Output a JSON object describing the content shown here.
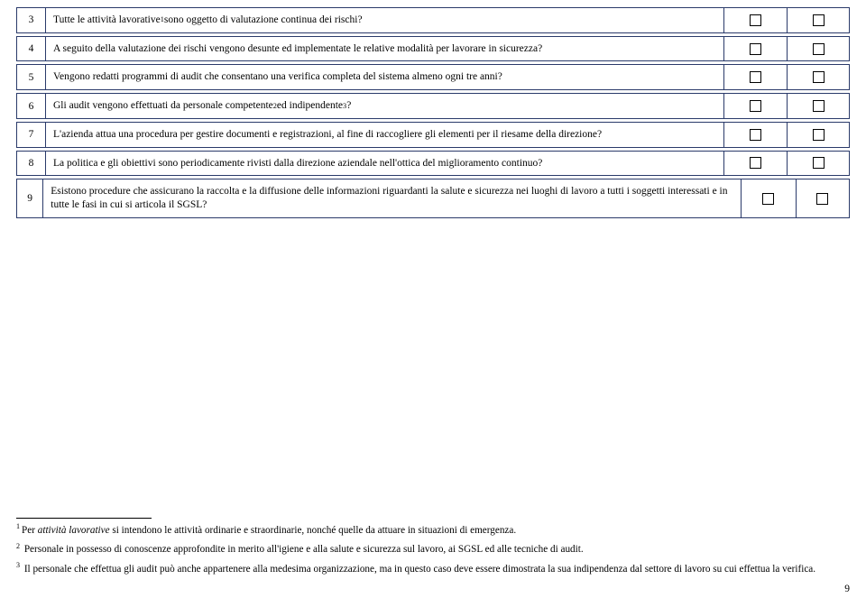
{
  "rows": [
    {
      "n": "3",
      "t": "Tutte le attività lavorative<sup>1</sup> sono oggetto di valutazione continua dei rischi?"
    },
    {
      "n": "4",
      "t": "A seguito della valutazione dei rischi vengono desunte ed implementate le relative modalità per lavorare in sicurezza?"
    },
    {
      "n": "5",
      "t": "Vengono redatti programmi di audit che consentano una verifica completa del sistema almeno ogni tre anni?"
    },
    {
      "n": "6",
      "t": "Gli audit vengono effettuati da personale competente<sup>2</sup> ed indipendente<sup>3</sup>?"
    },
    {
      "n": "7",
      "t": "L'azienda attua una procedura per gestire documenti e registrazioni, al fine di raccogliere gli elementi per il riesame della direzione?"
    },
    {
      "n": "8",
      "t": "La politica e gli obiettivi sono periodicamente rivisti dalla direzione aziendale nell'ottica del miglioramento continuo?"
    },
    {
      "n": "9",
      "t": "Esistono procedure che assicurano la raccolta e la diffusione delle informazioni riguardanti la salute e sicurezza nei luoghi di lavoro a tutti i soggetti interessati e in tutte le fasi in cui si articola il SGSL?"
    }
  ],
  "footnotes": {
    "f1": "Per <em>attività lavorative</em> si intendono le attività ordinarie e straordinarie, nonché quelle da attuare in situazioni di emergenza.",
    "f2": "Personale in possesso di conoscenze approfondite in merito all'igiene e alla salute e sicurezza sul lavoro, ai SGSL ed alle tecniche di audit.",
    "f3": "Il personale che effettua gli audit può anche appartenere alla medesima organizzazione, ma in questo caso deve essere dimostrata la sua indipendenza dal settore di lavoro su cui effettua la verifica."
  },
  "pagenum": "9"
}
